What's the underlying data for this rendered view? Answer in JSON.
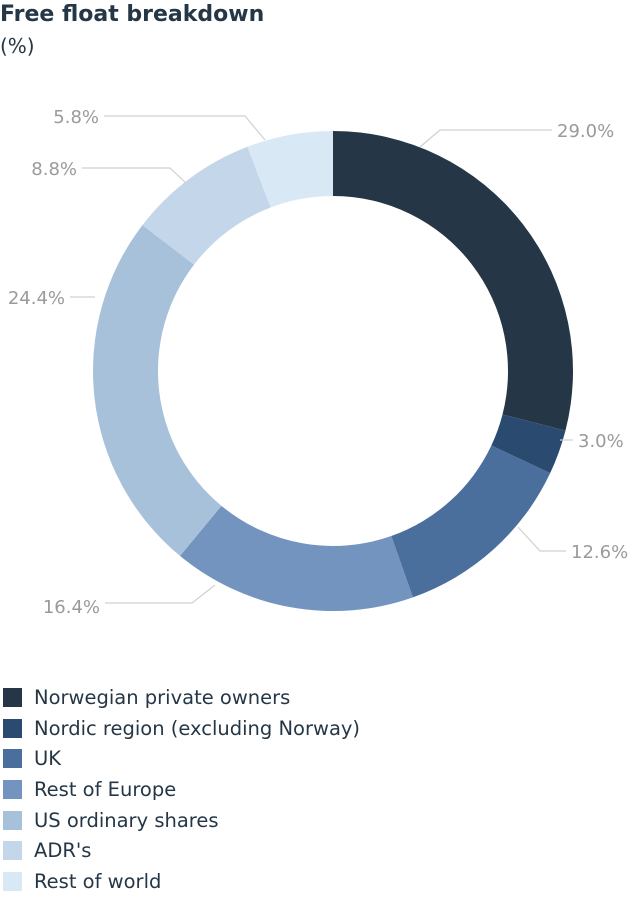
{
  "chart_data": {
    "type": "pie",
    "title": "Free float breakdown",
    "subtitle": "(%)",
    "donut": true,
    "categories": [
      "Norwegian private owners",
      "Nordic region (excluding Norway)",
      "UK",
      "Rest of Europe",
      "US ordinary shares",
      "ADR's",
      "Rest of world"
    ],
    "values": [
      29.0,
      3.0,
      12.6,
      16.4,
      24.4,
      8.8,
      5.8
    ],
    "labels": [
      "29.0%",
      "3.0%",
      "12.6%",
      "16.4%",
      "24.4%",
      "8.8%",
      "5.8%"
    ],
    "colors": [
      "#253746",
      "#2b4a6f",
      "#4b6f9c",
      "#7394be",
      "#a8c1db",
      "#c4d7ea",
      "#d9e8f5"
    ],
    "legend_position": "bottom"
  }
}
